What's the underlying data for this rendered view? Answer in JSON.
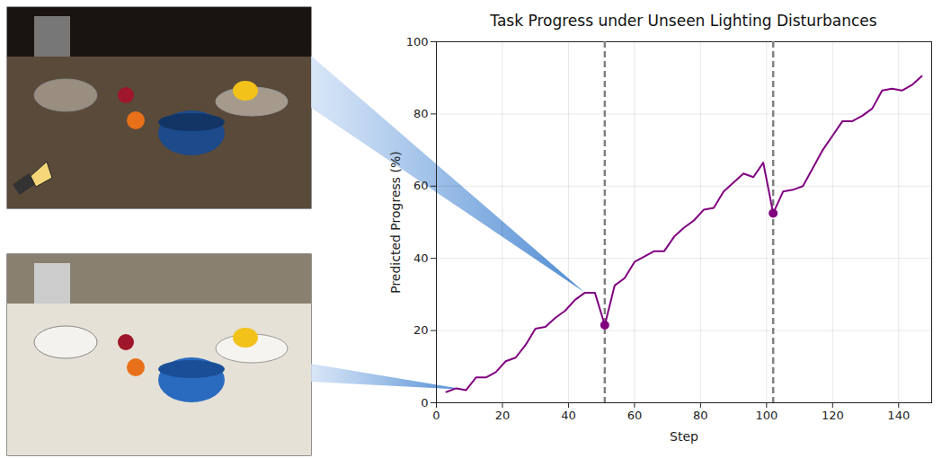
{
  "chart_data": {
    "type": "line",
    "title": "Task Progress under Unseen Lighting Disturbances",
    "x_label": "Step",
    "y_label": "Predicted Progress (%)",
    "x": [
      3,
      6,
      9,
      12,
      15,
      18,
      21,
      24,
      27,
      30,
      33,
      36,
      39,
      42,
      45,
      48,
      51,
      54,
      57,
      60,
      63,
      66,
      69,
      72,
      75,
      78,
      81,
      84,
      87,
      90,
      93,
      96,
      99,
      102,
      105,
      108,
      111,
      114,
      117,
      120,
      123,
      126,
      129,
      132,
      135,
      138,
      141,
      144,
      147
    ],
    "values": [
      3,
      4,
      3.5,
      7,
      7,
      8.5,
      11.5,
      12.5,
      16,
      20.5,
      21,
      23.5,
      25.5,
      28.5,
      30.5,
      30.5,
      21.5,
      32.5,
      34.5,
      39,
      40.5,
      42,
      42,
      46,
      48.5,
      50.5,
      53.5,
      54,
      58.5,
      61,
      63.5,
      62.5,
      66.5,
      52.5,
      58.5,
      59,
      60,
      65,
      70,
      74,
      78,
      78,
      79.5,
      81.5,
      86.5,
      87,
      86.5,
      88,
      90.5
    ],
    "color": "#800080",
    "disturbance_steps": [
      51,
      102
    ],
    "xlim": [
      0,
      150
    ],
    "xticks": [
      0,
      20,
      40,
      60,
      80,
      100,
      120,
      140
    ],
    "ylim": [
      0,
      100
    ],
    "yticks": [
      0,
      20,
      40,
      60,
      80,
      100
    ],
    "grid": true
  }
}
